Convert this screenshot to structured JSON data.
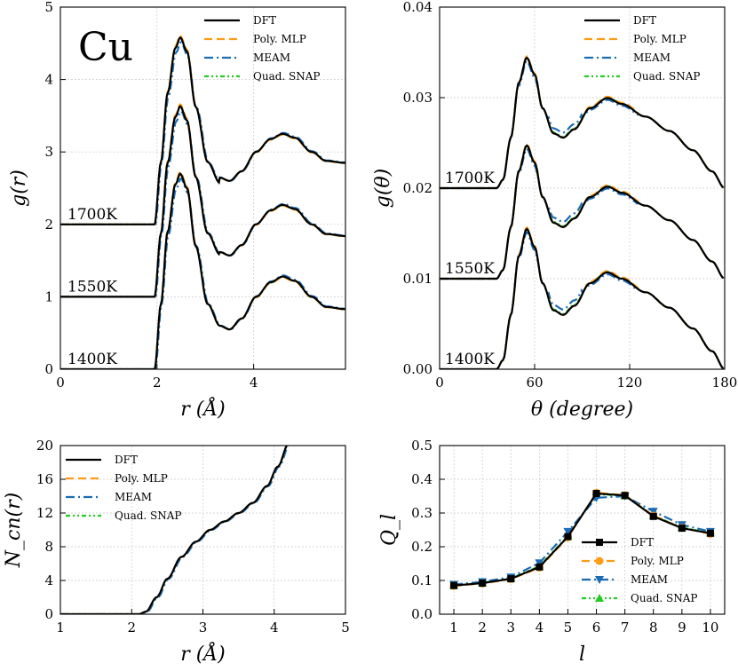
{
  "chart_data": [
    {
      "id": "g_r",
      "type": "line",
      "xlabel": "r (Å)",
      "ylabel": "g(r)",
      "xlim": [
        0,
        5.9
      ],
      "ylim": [
        0,
        5
      ],
      "xticks": [
        0,
        2,
        4
      ],
      "yticks": [
        0,
        1,
        2,
        3,
        4,
        5
      ],
      "element_label": "Cu",
      "curve_labels": [
        {
          "text": "1700K",
          "offset": 2
        },
        {
          "text": "1550K",
          "offset": 1
        },
        {
          "text": "1400K",
          "offset": 0
        }
      ],
      "legend": [
        "DFT",
        "Poly. MLP",
        "MEAM",
        "Quad. SNAP"
      ],
      "series": [
        {
          "name": "DFT",
          "key": [
            [
              0,
              0
            ],
            [
              1.95,
              0
            ],
            [
              2.08,
              0.9
            ],
            [
              2.22,
              1.9
            ],
            [
              2.38,
              2.55
            ],
            [
              2.48,
              2.7
            ],
            [
              2.62,
              2.5
            ],
            [
              2.8,
              1.7
            ],
            [
              3.05,
              0.9
            ],
            [
              3.3,
              0.6
            ],
            [
              3.5,
              0.55
            ],
            [
              3.75,
              0.7
            ],
            [
              4.05,
              1.0
            ],
            [
              4.35,
              1.2
            ],
            [
              4.6,
              1.28
            ],
            [
              4.85,
              1.22
            ],
            [
              5.2,
              1.0
            ],
            [
              5.5,
              0.86
            ],
            [
              5.9,
              0.83
            ]
          ],
          "peaks": [
            [
              1700,
              4.58,
              2.6,
              3.25
            ],
            [
              1550,
              3.63,
              1.57,
              2.27
            ],
            [
              1400,
              2.7,
              0.55,
              1.28
            ]
          ]
        },
        {
          "name": "Poly. MLP"
        },
        {
          "name": "MEAM"
        },
        {
          "name": "Quad. SNAP"
        }
      ]
    },
    {
      "id": "g_theta",
      "type": "line",
      "xlabel": "θ (degree)",
      "ylabel": "g(θ)",
      "xlim": [
        0,
        180
      ],
      "ylim": [
        0,
        0.04
      ],
      "xticks": [
        0,
        60,
        120,
        180
      ],
      "yticks": [
        "0.00",
        "0.01",
        "0.02",
        "0.03",
        "0.04"
      ],
      "curve_labels": [
        {
          "text": "1700K",
          "offset": 0.02
        },
        {
          "text": "1550K",
          "offset": 0.01
        },
        {
          "text": "1400K",
          "offset": 0
        }
      ],
      "legend": [
        "DFT",
        "Poly. MLP",
        "MEAM",
        "Quad. SNAP"
      ],
      "series": [
        {
          "name": "DFT",
          "key": [
            [
              0,
              0
            ],
            [
              36,
              0
            ],
            [
              40,
              0.001
            ],
            [
              45,
              0.006
            ],
            [
              50,
              0.0125
            ],
            [
              55,
              0.0155
            ],
            [
              60,
              0.0135
            ],
            [
              65,
              0.0095
            ],
            [
              72,
              0.0065
            ],
            [
              78,
              0.006
            ],
            [
              85,
              0.007
            ],
            [
              95,
              0.0095
            ],
            [
              106,
              0.0107
            ],
            [
              115,
              0.01
            ],
            [
              130,
              0.0085
            ],
            [
              145,
              0.0068
            ],
            [
              160,
              0.0045
            ],
            [
              172,
              0.002
            ],
            [
              180,
              0
            ]
          ]
        },
        {
          "name": "Poly. MLP"
        },
        {
          "name": "MEAM"
        },
        {
          "name": "Quad. SNAP"
        }
      ]
    },
    {
      "id": "n_cn",
      "type": "line",
      "xlabel": "r (Å)",
      "ylabel": "N_cn(r)",
      "xlim": [
        1,
        5
      ],
      "ylim": [
        0,
        20
      ],
      "xticks": [
        1,
        2,
        3,
        4,
        5
      ],
      "yticks": [
        0,
        4,
        8,
        12,
        16,
        20
      ],
      "legend": [
        "DFT",
        "Poly. MLP",
        "MEAM",
        "Quad. SNAP"
      ],
      "series": [
        {
          "name": "DFT",
          "key": [
            [
              1,
              0
            ],
            [
              2.1,
              0
            ],
            [
              2.2,
              0.3
            ],
            [
              2.35,
              2
            ],
            [
              2.5,
              4.2
            ],
            [
              2.7,
              6.8
            ],
            [
              2.9,
              8.6
            ],
            [
              3.1,
              10
            ],
            [
              3.3,
              11
            ],
            [
              3.5,
              12
            ],
            [
              3.7,
              13.2
            ],
            [
              3.9,
              15.2
            ],
            [
              4.05,
              17.5
            ],
            [
              4.2,
              20.2
            ]
          ]
        },
        {
          "name": "Poly. MLP"
        },
        {
          "name": "MEAM"
        },
        {
          "name": "Quad. SNAP"
        }
      ]
    },
    {
      "id": "q_l",
      "type": "line",
      "xlabel": "l",
      "ylabel": "Q_l",
      "xlim": [
        0.5,
        10.5
      ],
      "ylim": [
        0,
        0.5
      ],
      "xticks": [
        1,
        2,
        3,
        4,
        5,
        6,
        7,
        8,
        9,
        10
      ],
      "yticks": [
        "0.0",
        "0.1",
        "0.2",
        "0.3",
        "0.4",
        "0.5"
      ],
      "legend": [
        "DFT",
        "Poly. MLP",
        "MEAM",
        "Quad. SNAP"
      ],
      "categories": [
        1,
        2,
        3,
        4,
        5,
        6,
        7,
        8,
        9,
        10
      ],
      "series": [
        {
          "name": "DFT",
          "values": [
            0.085,
            0.092,
            0.105,
            0.14,
            0.23,
            0.358,
            0.352,
            0.29,
            0.255,
            0.24
          ]
        },
        {
          "name": "Poly. MLP",
          "values": [
            0.084,
            0.091,
            0.104,
            0.138,
            0.228,
            0.36,
            0.353,
            0.292,
            0.256,
            0.238
          ]
        },
        {
          "name": "MEAM",
          "values": [
            0.088,
            0.096,
            0.11,
            0.152,
            0.245,
            0.345,
            0.35,
            0.305,
            0.265,
            0.245
          ]
        },
        {
          "name": "Quad. SNAP",
          "values": [
            0.085,
            0.093,
            0.106,
            0.142,
            0.232,
            0.356,
            0.351,
            0.292,
            0.257,
            0.241
          ]
        }
      ]
    }
  ],
  "styles": {
    "DFT": {
      "color": "#000000",
      "dash": ""
    },
    "Poly. MLP": {
      "color": "#ff9c14",
      "dash": "9,5"
    },
    "MEAM": {
      "color": "#1b6cb3",
      "dash": "10,4,2,4"
    },
    "Quad. SNAP": {
      "color": "#22cc22",
      "dash": "5,3,2,3,2,3"
    }
  }
}
